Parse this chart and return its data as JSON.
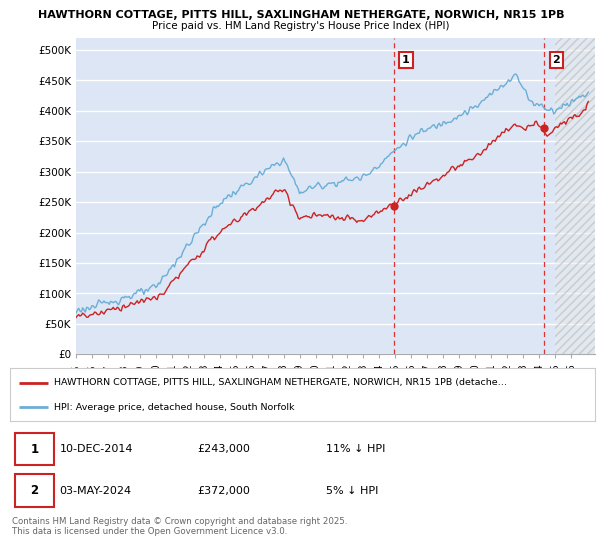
{
  "title_line1": "HAWTHORN COTTAGE, PITTS HILL, SAXLINGHAM NETHERGATE, NORWICH, NR15 1PB",
  "title_line2": "Price paid vs. HM Land Registry's House Price Index (HPI)",
  "ylabel_ticks": [
    "£0",
    "£50K",
    "£100K",
    "£150K",
    "£200K",
    "£250K",
    "£300K",
    "£350K",
    "£400K",
    "£450K",
    "£500K"
  ],
  "ytick_values": [
    0,
    50000,
    100000,
    150000,
    200000,
    250000,
    300000,
    350000,
    400000,
    450000,
    500000
  ],
  "ylim": [
    0,
    520000
  ],
  "xlim_start": 1995.0,
  "xlim_end": 2027.5,
  "background_color": "#dce6f5",
  "grid_color": "#ffffff",
  "hpi_color": "#6baed6",
  "price_color": "#cc2222",
  "sale1_x": 2014.92,
  "sale1_y": 243000,
  "sale2_x": 2024.33,
  "sale2_y": 372000,
  "vline1_x": 2014.92,
  "vline2_x": 2024.33,
  "vline_color": "#dd3333",
  "legend_label_red": "HAWTHORN COTTAGE, PITTS HILL, SAXLINGHAM NETHERGATE, NORWICH, NR15 1PB (detache…",
  "legend_label_blue": "HPI: Average price, detached house, South Norfolk",
  "annotation1_label": "1",
  "annotation2_label": "2",
  "table_row1": [
    "1",
    "10-DEC-2014",
    "£243,000",
    "11% ↓ HPI"
  ],
  "table_row2": [
    "2",
    "03-MAY-2024",
    "£372,000",
    "5% ↓ HPI"
  ],
  "footnote": "Contains HM Land Registry data © Crown copyright and database right 2025.\nThis data is licensed under the Open Government Licence v3.0.",
  "xtick_years": [
    1995,
    1996,
    1997,
    1998,
    1999,
    2000,
    2001,
    2002,
    2003,
    2004,
    2005,
    2006,
    2007,
    2008,
    2009,
    2010,
    2011,
    2012,
    2013,
    2014,
    2015,
    2016,
    2017,
    2018,
    2019,
    2020,
    2021,
    2022,
    2023,
    2024,
    2025,
    2026
  ],
  "hatch_start_x": 2025.0
}
